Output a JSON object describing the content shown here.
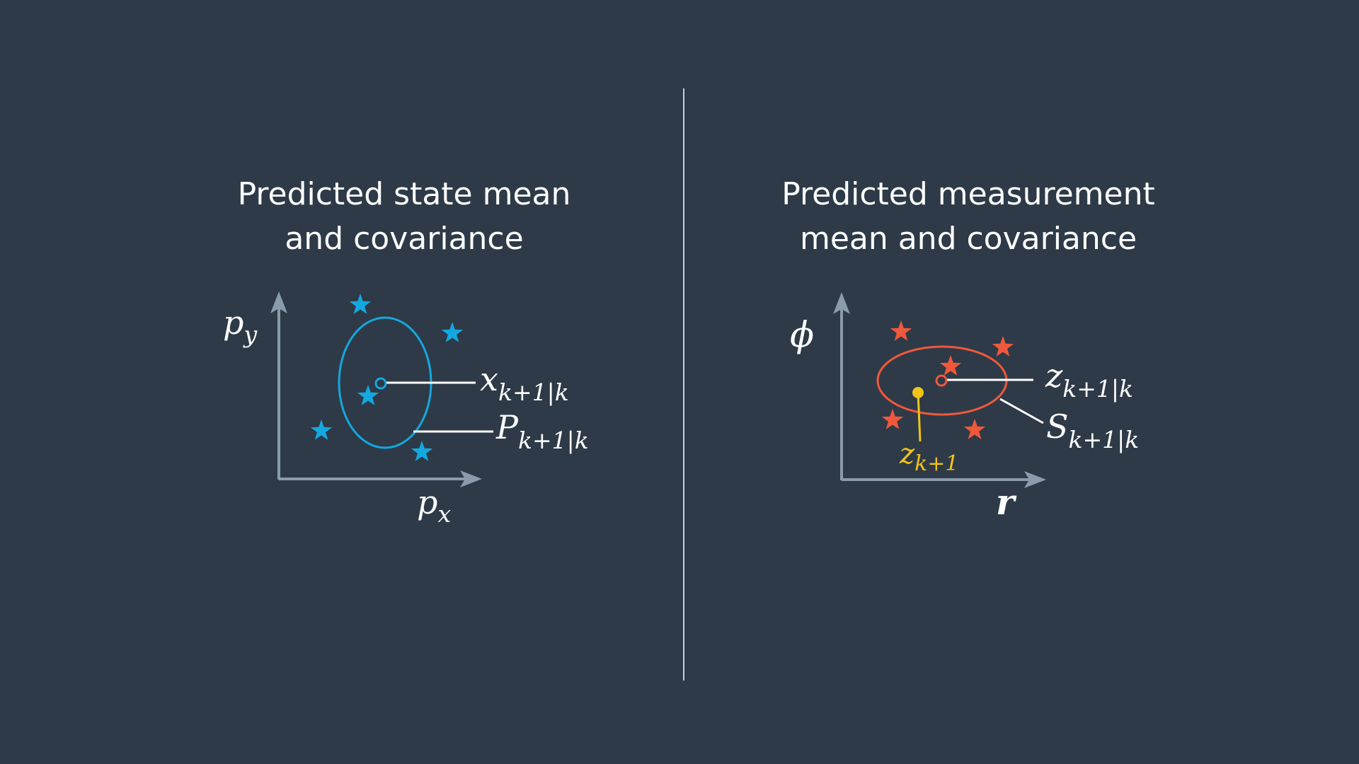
{
  "left_panel": {
    "title_line1": "Predicted state mean",
    "title_line2": "and covariance",
    "y_axis_label": "p",
    "y_axis_sub": "y",
    "x_axis_label": "p",
    "x_axis_sub": "x",
    "mean_label": "x",
    "mean_sub": "k+1|k",
    "cov_label": "P",
    "cov_sub": "k+1|k"
  },
  "right_panel": {
    "title_line1": "Predicted measurement",
    "title_line2": "mean and covariance",
    "y_axis_label": "ϕ",
    "x_axis_label": "r",
    "mean_label": "z",
    "mean_sub": "k+1|k",
    "cov_label": "S",
    "cov_sub": "k+1|k",
    "measurement_label": "z",
    "measurement_sub": "k+1"
  },
  "colors": {
    "background": "#2e3a47",
    "axis": "#8a9bab",
    "state_accent": "#13a8e0",
    "measurement_accent": "#f0583b",
    "measurement_point": "#f2c418",
    "text": "#ffffff",
    "divider": "#c7cdd3"
  },
  "icons": {
    "sigma_point": "star-icon"
  }
}
